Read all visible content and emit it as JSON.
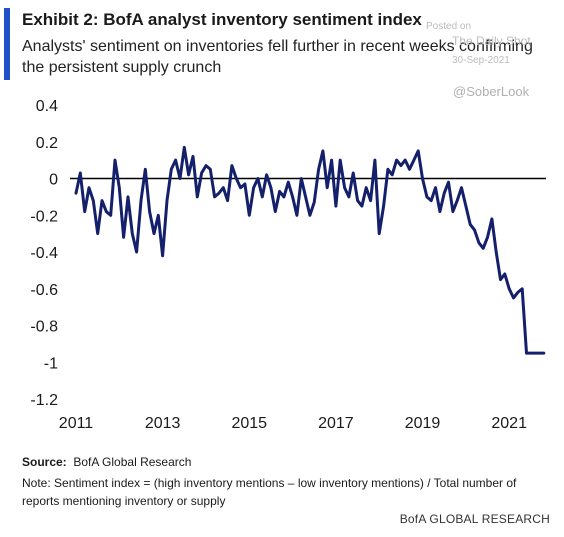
{
  "title": "Exhibit 2: BofA analyst  inventory sentiment index",
  "subtitle": "Analysts' sentiment on inventories fell further in recent weeks confirming the persistent supply crunch",
  "watermark": {
    "posted_on": "Posted on",
    "site": "The Daily Shot",
    "date": "30-Sep-2021",
    "handle": "@SoberLook"
  },
  "source_label": "Source:",
  "source_text": "BofA Global Research",
  "note": "Note: Sentiment index = (high inventory mentions – low inventory mentions) / Total number of reports mentioning  inventory or supply",
  "brand": "BofA GLOBAL RESEARCH",
  "colors": {
    "line": "#14206b",
    "accent": "#1f52c9",
    "zero_line": "#000000"
  },
  "chart_data": {
    "type": "line",
    "title": "Exhibit 2: BofA analyst  inventory sentiment index",
    "xlim": [
      2011.0,
      2021.85
    ],
    "ylim": [
      -1.2,
      0.4
    ],
    "x_ticks": [
      2011,
      2013,
      2015,
      2017,
      2019,
      2021
    ],
    "x_tick_labels": [
      "2011",
      "2013",
      "2015",
      "2017",
      "2019",
      "2021"
    ],
    "y_ticks": [
      0.4,
      0.2,
      0,
      -0.2,
      -0.4,
      -0.6,
      -0.8,
      -1,
      -1.2
    ],
    "y_tick_labels": [
      "0.4",
      "0.2",
      "0",
      "-0.2",
      "-0.4",
      "-0.6",
      "-0.8",
      "-1",
      "-1.2"
    ],
    "grid": false,
    "series": [
      {
        "x": [
          2011.0,
          2011.1,
          2011.2,
          2011.3,
          2011.4,
          2011.5,
          2011.6,
          2011.7,
          2011.8,
          2011.9,
          2012.0,
          2012.1,
          2012.2,
          2012.3,
          2012.4,
          2012.5,
          2012.6,
          2012.7,
          2012.8,
          2012.9,
          2013.0,
          2013.1,
          2013.2,
          2013.3,
          2013.4,
          2013.5,
          2013.6,
          2013.7,
          2013.8,
          2013.9,
          2014.0,
          2014.1,
          2014.2,
          2014.3,
          2014.4,
          2014.5,
          2014.6,
          2014.7,
          2014.8,
          2014.9,
          2015.0,
          2015.1,
          2015.2,
          2015.3,
          2015.4,
          2015.5,
          2015.6,
          2015.7,
          2015.8,
          2015.9,
          2016.0,
          2016.1,
          2016.2,
          2016.3,
          2016.4,
          2016.5,
          2016.6,
          2016.7,
          2016.8,
          2016.9,
          2017.0,
          2017.1,
          2017.2,
          2017.3,
          2017.4,
          2017.5,
          2017.6,
          2017.7,
          2017.8,
          2017.9,
          2018.0,
          2018.1,
          2018.2,
          2018.3,
          2018.4,
          2018.5,
          2018.6,
          2018.7,
          2018.8,
          2018.9,
          2019.0,
          2019.1,
          2019.2,
          2019.3,
          2019.4,
          2019.5,
          2019.6,
          2019.7,
          2019.8,
          2019.9,
          2020.0,
          2020.1,
          2020.2,
          2020.3,
          2020.4,
          2020.5,
          2020.6,
          2020.7,
          2020.8,
          2020.9,
          2021.0,
          2021.1,
          2021.2,
          2021.3,
          2021.4,
          2021.5,
          2021.6,
          2021.7,
          2021.8
        ],
        "values": [
          -0.08,
          0.03,
          -0.18,
          -0.05,
          -0.12,
          -0.3,
          -0.12,
          -0.18,
          -0.2,
          0.1,
          -0.05,
          -0.32,
          -0.1,
          -0.3,
          -0.4,
          -0.12,
          0.05,
          -0.18,
          -0.3,
          -0.2,
          -0.42,
          -0.12,
          0.05,
          0.1,
          0.0,
          0.17,
          0.02,
          0.12,
          -0.1,
          0.03,
          0.07,
          0.05,
          -0.1,
          -0.08,
          -0.05,
          -0.12,
          0.07,
          0.0,
          -0.05,
          -0.03,
          -0.2,
          -0.05,
          0.0,
          -0.1,
          0.02,
          -0.05,
          -0.18,
          -0.07,
          -0.1,
          -0.02,
          -0.1,
          -0.2,
          0.0,
          -0.1,
          -0.2,
          -0.13,
          0.05,
          0.15,
          -0.05,
          0.1,
          -0.15,
          0.1,
          -0.05,
          -0.1,
          0.03,
          -0.12,
          -0.15,
          -0.05,
          -0.12,
          0.1,
          -0.3,
          -0.15,
          0.05,
          0.02,
          0.1,
          0.07,
          0.1,
          0.05,
          0.1,
          0.15,
          0.0,
          -0.1,
          -0.12,
          -0.05,
          -0.18,
          -0.08,
          -0.02,
          -0.18,
          -0.12,
          -0.05,
          -0.15,
          -0.25,
          -0.28,
          -0.35,
          -0.38,
          -0.32,
          -0.22,
          -0.4,
          -0.55,
          -0.52,
          -0.6,
          -0.65,
          -0.62,
          -0.6,
          -0.95,
          -0.95,
          -0.95,
          -0.95,
          -0.95
        ]
      }
    ]
  }
}
